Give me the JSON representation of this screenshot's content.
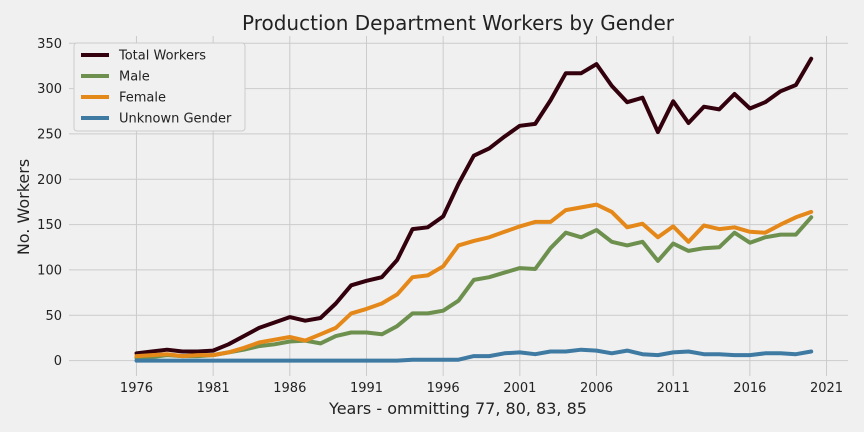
{
  "chart_data": {
    "type": "line",
    "title": "Production Department Workers by Gender",
    "xlabel": "Years - ommitting 77, 80, 83, 85",
    "ylabel": "No. Workers",
    "xlim": [
      1971.6,
      2022.4
    ],
    "ylim": [
      -17,
      358
    ],
    "xticks": [
      1976,
      1981,
      1986,
      1991,
      1996,
      2001,
      2006,
      2011,
      2016,
      2021
    ],
    "yticks": [
      0,
      50,
      100,
      150,
      200,
      250,
      300,
      350
    ],
    "grid": true,
    "legend_position": "top-left",
    "x": [
      1976,
      1977,
      1978,
      1979,
      1980,
      1981,
      1982,
      1983,
      1984,
      1985,
      1986,
      1987,
      1988,
      1989,
      1990,
      1991,
      1992,
      1993,
      1994,
      1995,
      1996,
      1997,
      1998,
      1999,
      2000,
      2001,
      2002,
      2003,
      2004,
      2005,
      2006,
      2007,
      2008,
      2009,
      2010,
      2011,
      2012,
      2013,
      2014,
      2015,
      2016,
      2017,
      2018,
      2019,
      2020
    ],
    "series": [
      {
        "name": "Total Workers",
        "color": "#33000d",
        "values": [
          8,
          10,
          12,
          10,
          10,
          11,
          18,
          27,
          36,
          42,
          48,
          44,
          47,
          63,
          83,
          88,
          92,
          111,
          145,
          147,
          159,
          195,
          226,
          234,
          247,
          259,
          261,
          287,
          317,
          317,
          327,
          303,
          285,
          290,
          252,
          286,
          262,
          280,
          277,
          294,
          278,
          285,
          297,
          304,
          333
        ]
      },
      {
        "name": "Male",
        "color": "#6d904f",
        "values": [
          3,
          4,
          6,
          5,
          5,
          6,
          9,
          12,
          16,
          18,
          21,
          22,
          19,
          27,
          31,
          31,
          29,
          38,
          52,
          52,
          55,
          66,
          89,
          92,
          97,
          102,
          101,
          124,
          141,
          136,
          144,
          131,
          127,
          131,
          110,
          129,
          121,
          124,
          125,
          141,
          130,
          136,
          139,
          139,
          158
        ]
      },
      {
        "name": "Female",
        "color": "#e5881a",
        "values": [
          5,
          6,
          7,
          5,
          6,
          6,
          9,
          14,
          20,
          23,
          26,
          22,
          29,
          36,
          52,
          57,
          63,
          73,
          92,
          94,
          104,
          127,
          132,
          136,
          142,
          148,
          153,
          153,
          166,
          169,
          172,
          164,
          147,
          151,
          136,
          148,
          131,
          149,
          145,
          147,
          142,
          141,
          150,
          158,
          164
        ]
      },
      {
        "name": "Unknown Gender",
        "color": "#3f7aa3",
        "values": [
          0,
          0,
          0,
          0,
          0,
          0,
          0,
          0,
          0,
          0,
          0,
          0,
          0,
          0,
          0,
          0,
          0,
          0,
          1,
          1,
          1,
          1,
          5,
          5,
          8,
          9,
          7,
          10,
          10,
          12,
          11,
          8,
          11,
          7,
          6,
          9,
          10,
          7,
          7,
          6,
          6,
          8,
          8,
          7,
          10
        ]
      }
    ]
  }
}
